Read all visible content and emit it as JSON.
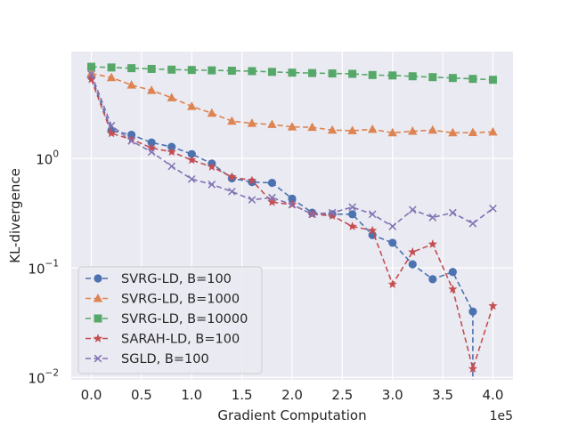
{
  "chart_data": {
    "type": "line",
    "title": "",
    "xlabel": "Gradient Computation",
    "ylabel": "KL-divergence",
    "x_offset_label": "1e5",
    "yscale": "log",
    "xlim": [
      -0.2,
      4.2
    ],
    "ylim": [
      0.0095,
      9.5
    ],
    "xticks": [
      0.0,
      0.5,
      1.0,
      1.5,
      2.0,
      2.5,
      3.0,
      3.5,
      4.0
    ],
    "xtick_labels": [
      "0.0",
      "0.5",
      "1.0",
      "1.5",
      "2.0",
      "2.5",
      "3.0",
      "3.5",
      "4.0"
    ],
    "yticks": [
      {
        "value": 1.0,
        "base": "10",
        "exp": "0"
      },
      {
        "value": 0.1,
        "base": "10",
        "exp": "−1"
      },
      {
        "value": 0.01,
        "base": "10",
        "exp": "−2"
      }
    ],
    "grid": true,
    "legend_position": "lower-left",
    "series": [
      {
        "name": "SVRG-LD, B=100",
        "color": "#4c72b0",
        "marker": "circle",
        "x": [
          0.0,
          0.2,
          0.4,
          0.6,
          0.8,
          1.0,
          1.2,
          1.4,
          1.6,
          1.8,
          2.0,
          2.2,
          2.4,
          2.6,
          2.8,
          3.0,
          3.2,
          3.4,
          3.6,
          3.8
        ],
        "values": [
          5.6,
          1.8,
          1.65,
          1.4,
          1.28,
          1.1,
          0.9,
          0.66,
          0.61,
          0.6,
          0.43,
          0.32,
          0.31,
          0.31,
          0.2,
          0.17,
          0.108,
          0.079,
          0.092,
          0.04
        ],
        "trailing_drop_to_x": 3.8
      },
      {
        "name": "SVRG-LD, B=1000",
        "color": "#dd8452",
        "marker": "triangle",
        "x": [
          0.0,
          0.2,
          0.4,
          0.6,
          0.8,
          1.0,
          1.2,
          1.4,
          1.6,
          1.8,
          2.0,
          2.2,
          2.4,
          2.6,
          2.8,
          3.0,
          3.2,
          3.4,
          3.6,
          3.8,
          4.0
        ],
        "values": [
          6.0,
          5.5,
          4.7,
          4.2,
          3.6,
          3.0,
          2.6,
          2.2,
          2.1,
          2.05,
          1.95,
          1.93,
          1.82,
          1.8,
          1.85,
          1.72,
          1.78,
          1.82,
          1.72,
          1.73,
          1.75
        ]
      },
      {
        "name": "SVRG-LD, B=10000",
        "color": "#55a868",
        "marker": "square",
        "x": [
          0.0,
          0.2,
          0.4,
          0.6,
          0.8,
          1.0,
          1.2,
          1.4,
          1.6,
          1.8,
          2.0,
          2.2,
          2.4,
          2.6,
          2.8,
          3.0,
          3.2,
          3.4,
          3.6,
          3.8,
          4.0
        ],
        "values": [
          6.9,
          6.8,
          6.7,
          6.6,
          6.5,
          6.45,
          6.4,
          6.35,
          6.3,
          6.2,
          6.1,
          6.05,
          6.0,
          5.95,
          5.8,
          5.75,
          5.65,
          5.55,
          5.45,
          5.35,
          5.25
        ]
      },
      {
        "name": "SARAH-LD, B=100",
        "color": "#c44e52",
        "marker": "star",
        "x": [
          0.0,
          0.2,
          0.4,
          0.6,
          0.8,
          1.0,
          1.2,
          1.4,
          1.6,
          1.8,
          2.0,
          2.2,
          2.4,
          2.6,
          2.8,
          3.0,
          3.2,
          3.4,
          3.6,
          3.8,
          4.0
        ],
        "values": [
          5.3,
          1.7,
          1.5,
          1.25,
          1.15,
          0.97,
          0.84,
          0.68,
          0.63,
          0.4,
          0.38,
          0.31,
          0.3,
          0.24,
          0.22,
          0.071,
          0.14,
          0.165,
          0.064,
          0.012,
          0.045
        ]
      },
      {
        "name": "SGLD, B=100",
        "color": "#8172b3",
        "marker": "x",
        "x": [
          0.0,
          0.2,
          0.4,
          0.6,
          0.8,
          1.0,
          1.2,
          1.4,
          1.6,
          1.8,
          2.0,
          2.2,
          2.4,
          2.6,
          2.8,
          3.0,
          3.2,
          3.4,
          3.6,
          3.8,
          4.0
        ],
        "values": [
          5.9,
          2.0,
          1.45,
          1.15,
          0.85,
          0.65,
          0.58,
          0.5,
          0.42,
          0.44,
          0.38,
          0.31,
          0.32,
          0.36,
          0.31,
          0.24,
          0.34,
          0.29,
          0.32,
          0.255,
          0.35
        ]
      }
    ]
  }
}
